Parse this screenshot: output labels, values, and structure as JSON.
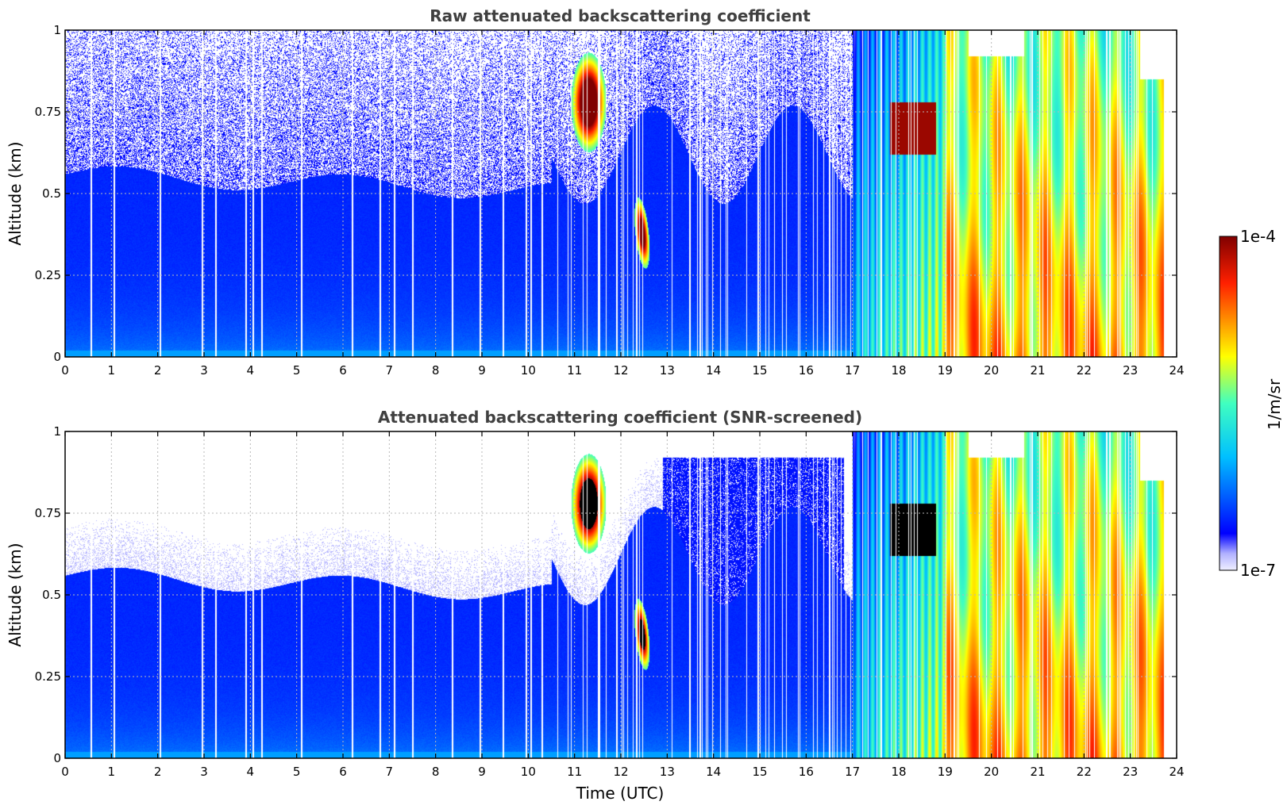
{
  "chart_data": [
    {
      "type": "heatmap",
      "title": "Raw attenuated backscattering coefficient",
      "xlabel": "",
      "ylabel": "Altitude (km)",
      "xlim": [
        0,
        24
      ],
      "ylim": [
        0,
        1
      ],
      "x_ticks": [
        "0",
        "1",
        "2",
        "3",
        "4",
        "5",
        "6",
        "7",
        "8",
        "9",
        "10",
        "11",
        "12",
        "13",
        "14",
        "15",
        "16",
        "17",
        "18",
        "19",
        "20",
        "21",
        "22",
        "23",
        "24"
      ],
      "y_ticks": [
        "0",
        "0.25",
        "0.5",
        "0.75",
        "1"
      ],
      "grid": true,
      "screened": false
    },
    {
      "type": "heatmap",
      "title": "Attenuated backscattering coefficient (SNR-screened)",
      "xlabel": "Time (UTC)",
      "ylabel": "Altitude (km)",
      "xlim": [
        0,
        24
      ],
      "ylim": [
        0,
        1
      ],
      "x_ticks": [
        "0",
        "1",
        "2",
        "3",
        "4",
        "5",
        "6",
        "7",
        "8",
        "9",
        "10",
        "11",
        "12",
        "13",
        "14",
        "15",
        "16",
        "17",
        "18",
        "19",
        "20",
        "21",
        "22",
        "23",
        "24"
      ],
      "y_ticks": [
        "0",
        "0.25",
        "0.5",
        "0.75",
        "1"
      ],
      "grid": true,
      "screened": true
    }
  ],
  "colorbar": {
    "label": "1/m/sr",
    "min_label": "1e-7",
    "max_label": "1e-4",
    "min_value": 1e-07,
    "max_value": 0.0001,
    "scale": "log",
    "colormap": "jet"
  }
}
